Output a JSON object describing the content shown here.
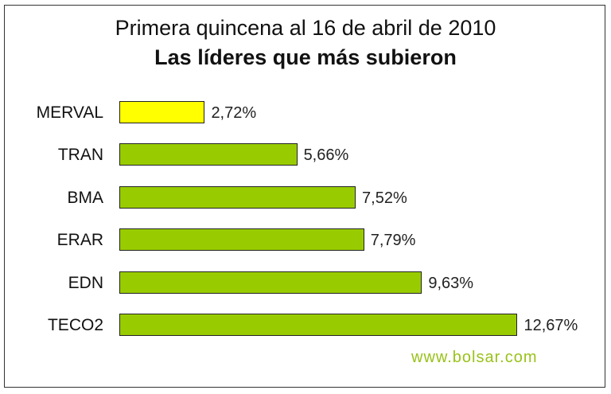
{
  "chart_data": {
    "type": "bar",
    "orientation": "horizontal",
    "title": "Primera quincena al 16 de abril de 2010",
    "subtitle": "Las líderes que más subieron",
    "categories": [
      "MERVAL",
      "TRAN",
      "BMA",
      "ERAR",
      "EDN",
      "TECO2"
    ],
    "values": [
      2.72,
      5.66,
      7.52,
      7.79,
      9.63,
      12.67
    ],
    "value_labels": [
      "2,72%",
      "5,66%",
      "7,52%",
      "7,79%",
      "9,63%",
      "12,67%"
    ],
    "colors": [
      "#ffff00",
      "#99cc00",
      "#99cc00",
      "#99cc00",
      "#99cc00",
      "#99cc00"
    ],
    "xlabel": "",
    "ylabel": "",
    "unit": "%",
    "grid": false,
    "legend": null,
    "annotations": [
      "www.bolsar.com"
    ]
  },
  "header": {
    "title": "Primera quincena al 16 de abril de 2010",
    "subtitle": "Las líderes que más subieron"
  },
  "footer": {
    "source": "www.bolsar.com"
  }
}
